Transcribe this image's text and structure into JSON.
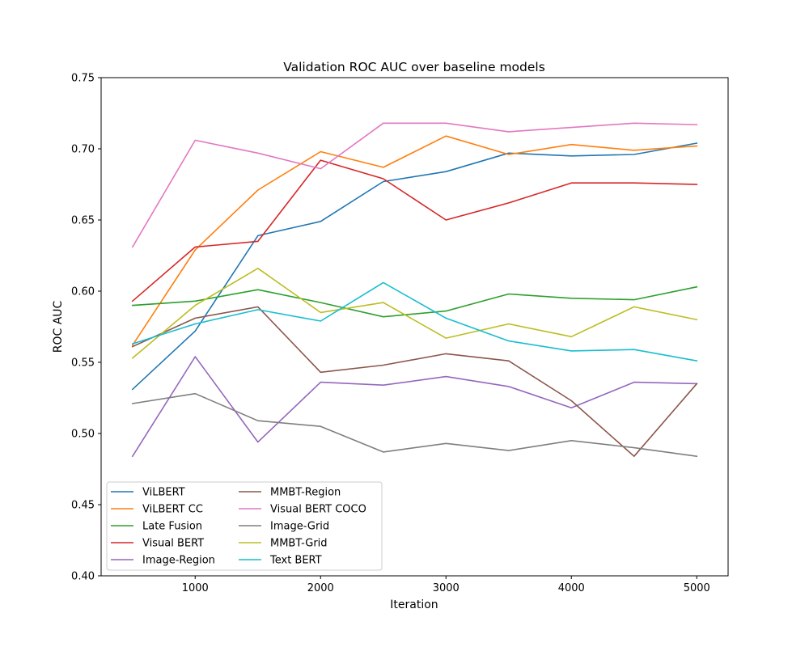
{
  "chart_data": {
    "type": "line",
    "title": "Validation ROC AUC over baseline models",
    "xlabel": "Iteration",
    "ylabel": "ROC AUC",
    "xlim": [
      250,
      5250
    ],
    "ylim": [
      0.4,
      0.75
    ],
    "xticks": [
      1000,
      2000,
      3000,
      4000,
      5000
    ],
    "yticks": [
      0.4,
      0.45,
      0.5,
      0.55,
      0.6,
      0.65,
      0.7,
      0.75
    ],
    "xtick_labels": [
      "1000",
      "2000",
      "3000",
      "4000",
      "5000"
    ],
    "ytick_labels": [
      "0.40",
      "0.45",
      "0.50",
      "0.55",
      "0.60",
      "0.65",
      "0.70",
      "0.75"
    ],
    "grid": false,
    "legend_position": "lower-left",
    "legend_columns": 2,
    "x": [
      500,
      1000,
      1500,
      2000,
      2500,
      3000,
      3500,
      4000,
      4500,
      5000
    ],
    "series": [
      {
        "name": "ViLBERT",
        "color": "#1f77b4",
        "values": [
          0.531,
          0.572,
          0.639,
          0.649,
          0.677,
          0.684,
          0.697,
          0.695,
          0.696,
          0.704
        ]
      },
      {
        "name": "ViLBERT CC",
        "color": "#ff7f0e",
        "values": [
          0.562,
          0.629,
          0.671,
          0.698,
          0.687,
          0.709,
          0.696,
          0.703,
          0.699,
          0.702
        ]
      },
      {
        "name": "Late Fusion",
        "color": "#2ca02c",
        "values": [
          0.59,
          0.593,
          0.601,
          0.592,
          0.582,
          0.586,
          0.598,
          0.595,
          0.594,
          0.603
        ]
      },
      {
        "name": "Visual BERT",
        "color": "#d62728",
        "values": [
          0.593,
          0.631,
          0.635,
          0.692,
          0.679,
          0.65,
          0.662,
          0.676,
          0.676,
          0.675
        ]
      },
      {
        "name": "Image-Region",
        "color": "#9467bd",
        "values": [
          0.484,
          0.554,
          0.494,
          0.536,
          0.534,
          0.54,
          0.533,
          0.518,
          0.536,
          0.535
        ]
      },
      {
        "name": "MMBT-Region",
        "color": "#8c564b",
        "values": [
          0.561,
          0.581,
          0.589,
          0.543,
          0.548,
          0.556,
          0.551,
          0.523,
          0.484,
          0.535
        ]
      },
      {
        "name": "Visual BERT COCO",
        "color": "#e377c2",
        "values": [
          0.631,
          0.706,
          0.697,
          0.686,
          0.718,
          0.718,
          0.712,
          0.715,
          0.718,
          0.717
        ]
      },
      {
        "name": "Image-Grid",
        "color": "#7f7f7f",
        "values": [
          0.521,
          0.528,
          0.509,
          0.505,
          0.487,
          0.493,
          0.488,
          0.495,
          0.49,
          0.484
        ]
      },
      {
        "name": "MMBT-Grid",
        "color": "#bcbd22",
        "values": [
          0.553,
          0.59,
          0.616,
          0.585,
          0.592,
          0.567,
          0.577,
          0.568,
          0.589,
          0.58
        ]
      },
      {
        "name": "Text BERT",
        "color": "#17becf",
        "values": [
          0.563,
          0.577,
          0.587,
          0.579,
          0.606,
          0.581,
          0.565,
          0.558,
          0.559,
          0.551
        ]
      }
    ]
  }
}
